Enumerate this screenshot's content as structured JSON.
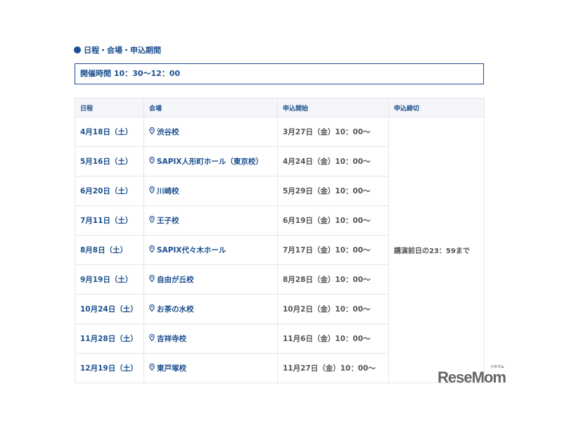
{
  "section_title": "日程・会場・申込期間",
  "time": "開催時間 10：30～12：00",
  "headers": [
    "日程",
    "会場",
    "申込開始",
    "申込締切"
  ],
  "rows": [
    {
      "date": "4月18日（土）",
      "venue": "渋谷校",
      "start": "3月27日（金）10：00～"
    },
    {
      "date": "5月16日（土）",
      "venue": "SAPIX人形町ホール（東京校）",
      "start": "4月24日（金）10：00～"
    },
    {
      "date": "6月20日（土）",
      "venue": "川崎校",
      "start": "5月29日（金）10：00～"
    },
    {
      "date": "7月11日（土）",
      "venue": "王子校",
      "start": "6月19日（金）10：00～"
    },
    {
      "date": "8月8日（土）",
      "venue": "SAPIX代々木ホール",
      "start": "7月17日（金）10：00～"
    },
    {
      "date": "9月19日（土）",
      "venue": "自由が丘校",
      "start": "8月28日（金）10：00～"
    },
    {
      "date": "10月24日（土）",
      "venue": "お茶の水校",
      "start": "10月2日（金）10：00～"
    },
    {
      "date": "11月28日（土）",
      "venue": "吉祥寺校",
      "start": "11月6日（金）10：00～"
    },
    {
      "date": "12月19日（土）",
      "venue": "東戸塚校",
      "start": "11月27日（金）10：00～"
    }
  ],
  "deadline": "講演前日の23：59まで",
  "logo": {
    "text": "ReseMom",
    "sub": "リセマム"
  },
  "colors": {
    "accent": "#1b4f8f",
    "text_gray": "#555555"
  }
}
